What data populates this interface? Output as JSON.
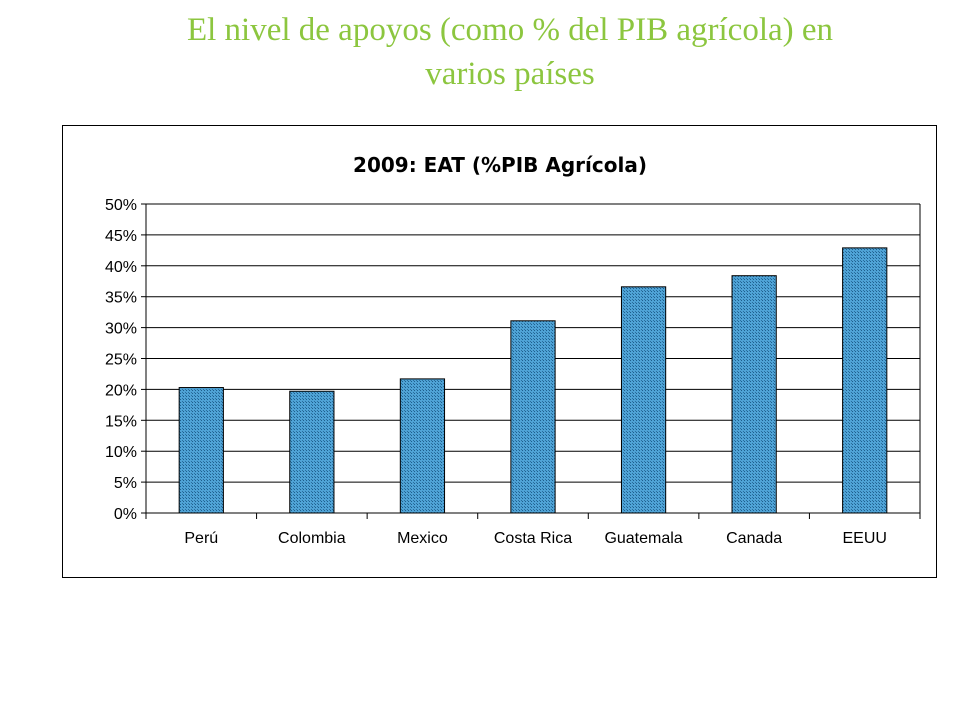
{
  "slide": {
    "title_line1": "El nivel de apoyos (como % del PIB agrícola) en",
    "title_line2": "varios países"
  },
  "colors": {
    "title": "#8cc63f",
    "bar_fill": "#3c93c7",
    "bar_stroke": "#000000",
    "grid": "#000000"
  },
  "chart_data": {
    "type": "bar",
    "title": "2009: EAT (%PIB Agrícola)",
    "categories": [
      "Perú",
      "Colombia",
      "Mexico",
      "Costa Rica",
      "Guatemala",
      "Canada",
      "EEUU"
    ],
    "values": [
      0.203,
      0.197,
      0.217,
      0.311,
      0.366,
      0.384,
      0.429
    ],
    "ylim": [
      0,
      0.5
    ],
    "yticks": [
      0,
      0.05,
      0.1,
      0.15,
      0.2,
      0.25,
      0.3,
      0.35,
      0.4,
      0.45,
      0.5
    ],
    "ytick_labels": [
      "0%",
      "5%",
      "10%",
      "15%",
      "20%",
      "25%",
      "30%",
      "35%",
      "40%",
      "45%",
      "50%"
    ],
    "xlabel": "",
    "ylabel": "",
    "grid": true,
    "legend": false
  }
}
